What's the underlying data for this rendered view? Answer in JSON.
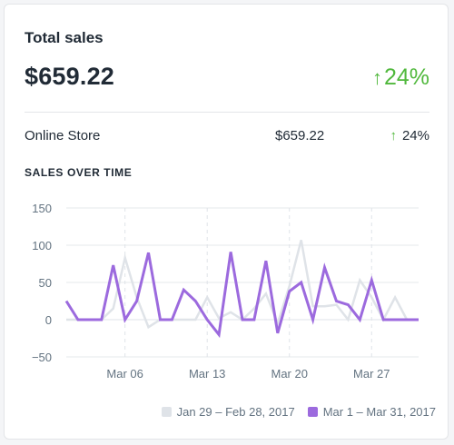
{
  "card": {
    "title": "Total sales",
    "total": "$659.22",
    "change_arrow": "↑",
    "change_pct": "24%",
    "breakdown": {
      "label": "Online Store",
      "amount": "$659.22",
      "arrow": "↑",
      "pct": "24%"
    },
    "section_title": "SALES OVER TIME"
  },
  "colors": {
    "positive": "#50b83c",
    "current_series": "#9c6ade",
    "previous_series": "#dfe3e8",
    "grid": "#e6e8eb",
    "axis_text": "#637381"
  },
  "chart_data": {
    "type": "line",
    "ylim": [
      -50,
      150
    ],
    "yticks": [
      150,
      100,
      50,
      0,
      -50
    ],
    "ytick_labels": [
      "150",
      "100",
      "50",
      "0",
      "−50"
    ],
    "xlim": [
      1,
      31
    ],
    "xticks": [
      {
        "day": 6,
        "label": "Mar 06"
      },
      {
        "day": 13,
        "label": "Mar 13"
      },
      {
        "day": 20,
        "label": "Mar 20"
      },
      {
        "day": 27,
        "label": "Mar 27"
      }
    ],
    "series": [
      {
        "name": "Jan 29 – Feb 28, 2017",
        "color": "#dfe3e8",
        "x": [
          1,
          2,
          3,
          4,
          5,
          6,
          7,
          8,
          9,
          10,
          11,
          12,
          13,
          14,
          15,
          16,
          17,
          18,
          19,
          20,
          21,
          22,
          23,
          24,
          25,
          26,
          27,
          28,
          29,
          30
        ],
        "values": [
          0,
          0,
          0,
          0,
          15,
          83,
          30,
          -10,
          0,
          0,
          0,
          0,
          30,
          2,
          10,
          0,
          15,
          35,
          -5,
          45,
          107,
          18,
          18,
          20,
          0,
          53,
          30,
          0,
          30,
          0
        ]
      },
      {
        "name": "Mar 1 – Mar 31, 2017",
        "color": "#9c6ade",
        "x": [
          1,
          2,
          3,
          4,
          5,
          6,
          7,
          8,
          9,
          10,
          11,
          12,
          13,
          14,
          15,
          16,
          17,
          18,
          19,
          20,
          21,
          22,
          23,
          24,
          25,
          26,
          27,
          28,
          29,
          30,
          31
        ],
        "values": [
          25,
          0,
          0,
          0,
          73,
          0,
          25,
          90,
          0,
          0,
          40,
          25,
          0,
          -20,
          91,
          0,
          0,
          79,
          -18,
          38,
          50,
          0,
          70,
          25,
          20,
          0,
          53,
          0,
          0,
          0,
          0
        ]
      }
    ]
  }
}
